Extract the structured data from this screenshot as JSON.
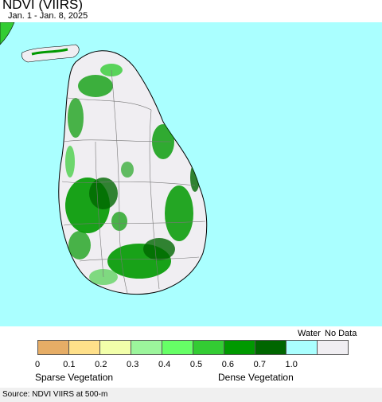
{
  "header": {
    "title": "NDVI (VIIRS)",
    "date_range": "Jan. 1 - Jan. 8, 2025"
  },
  "legend": {
    "water_label": "Water",
    "no_data_label": "No Data",
    "ticks": [
      "0",
      "0.1",
      "0.2",
      "0.3",
      "0.4",
      "0.5",
      "0.6",
      "0.7",
      "1.0"
    ],
    "colors": [
      "#e6ad66",
      "#ffe08a",
      "#f2ffaa",
      "#9cf59c",
      "#66ff66",
      "#33cc33",
      "#009900",
      "#006600",
      "#aaffff",
      "#f0eef2"
    ],
    "sparse_label": "Sparse Vegetation",
    "dense_label": "Dense Vegetation"
  },
  "map": {
    "water_color": "#aaffff",
    "land_color": "#f0eef2",
    "vegetation_color": "#009900",
    "dense_vegetation_color": "#006600"
  },
  "footer": {
    "source": "Source: NDVI VIIRS at 500-m"
  }
}
